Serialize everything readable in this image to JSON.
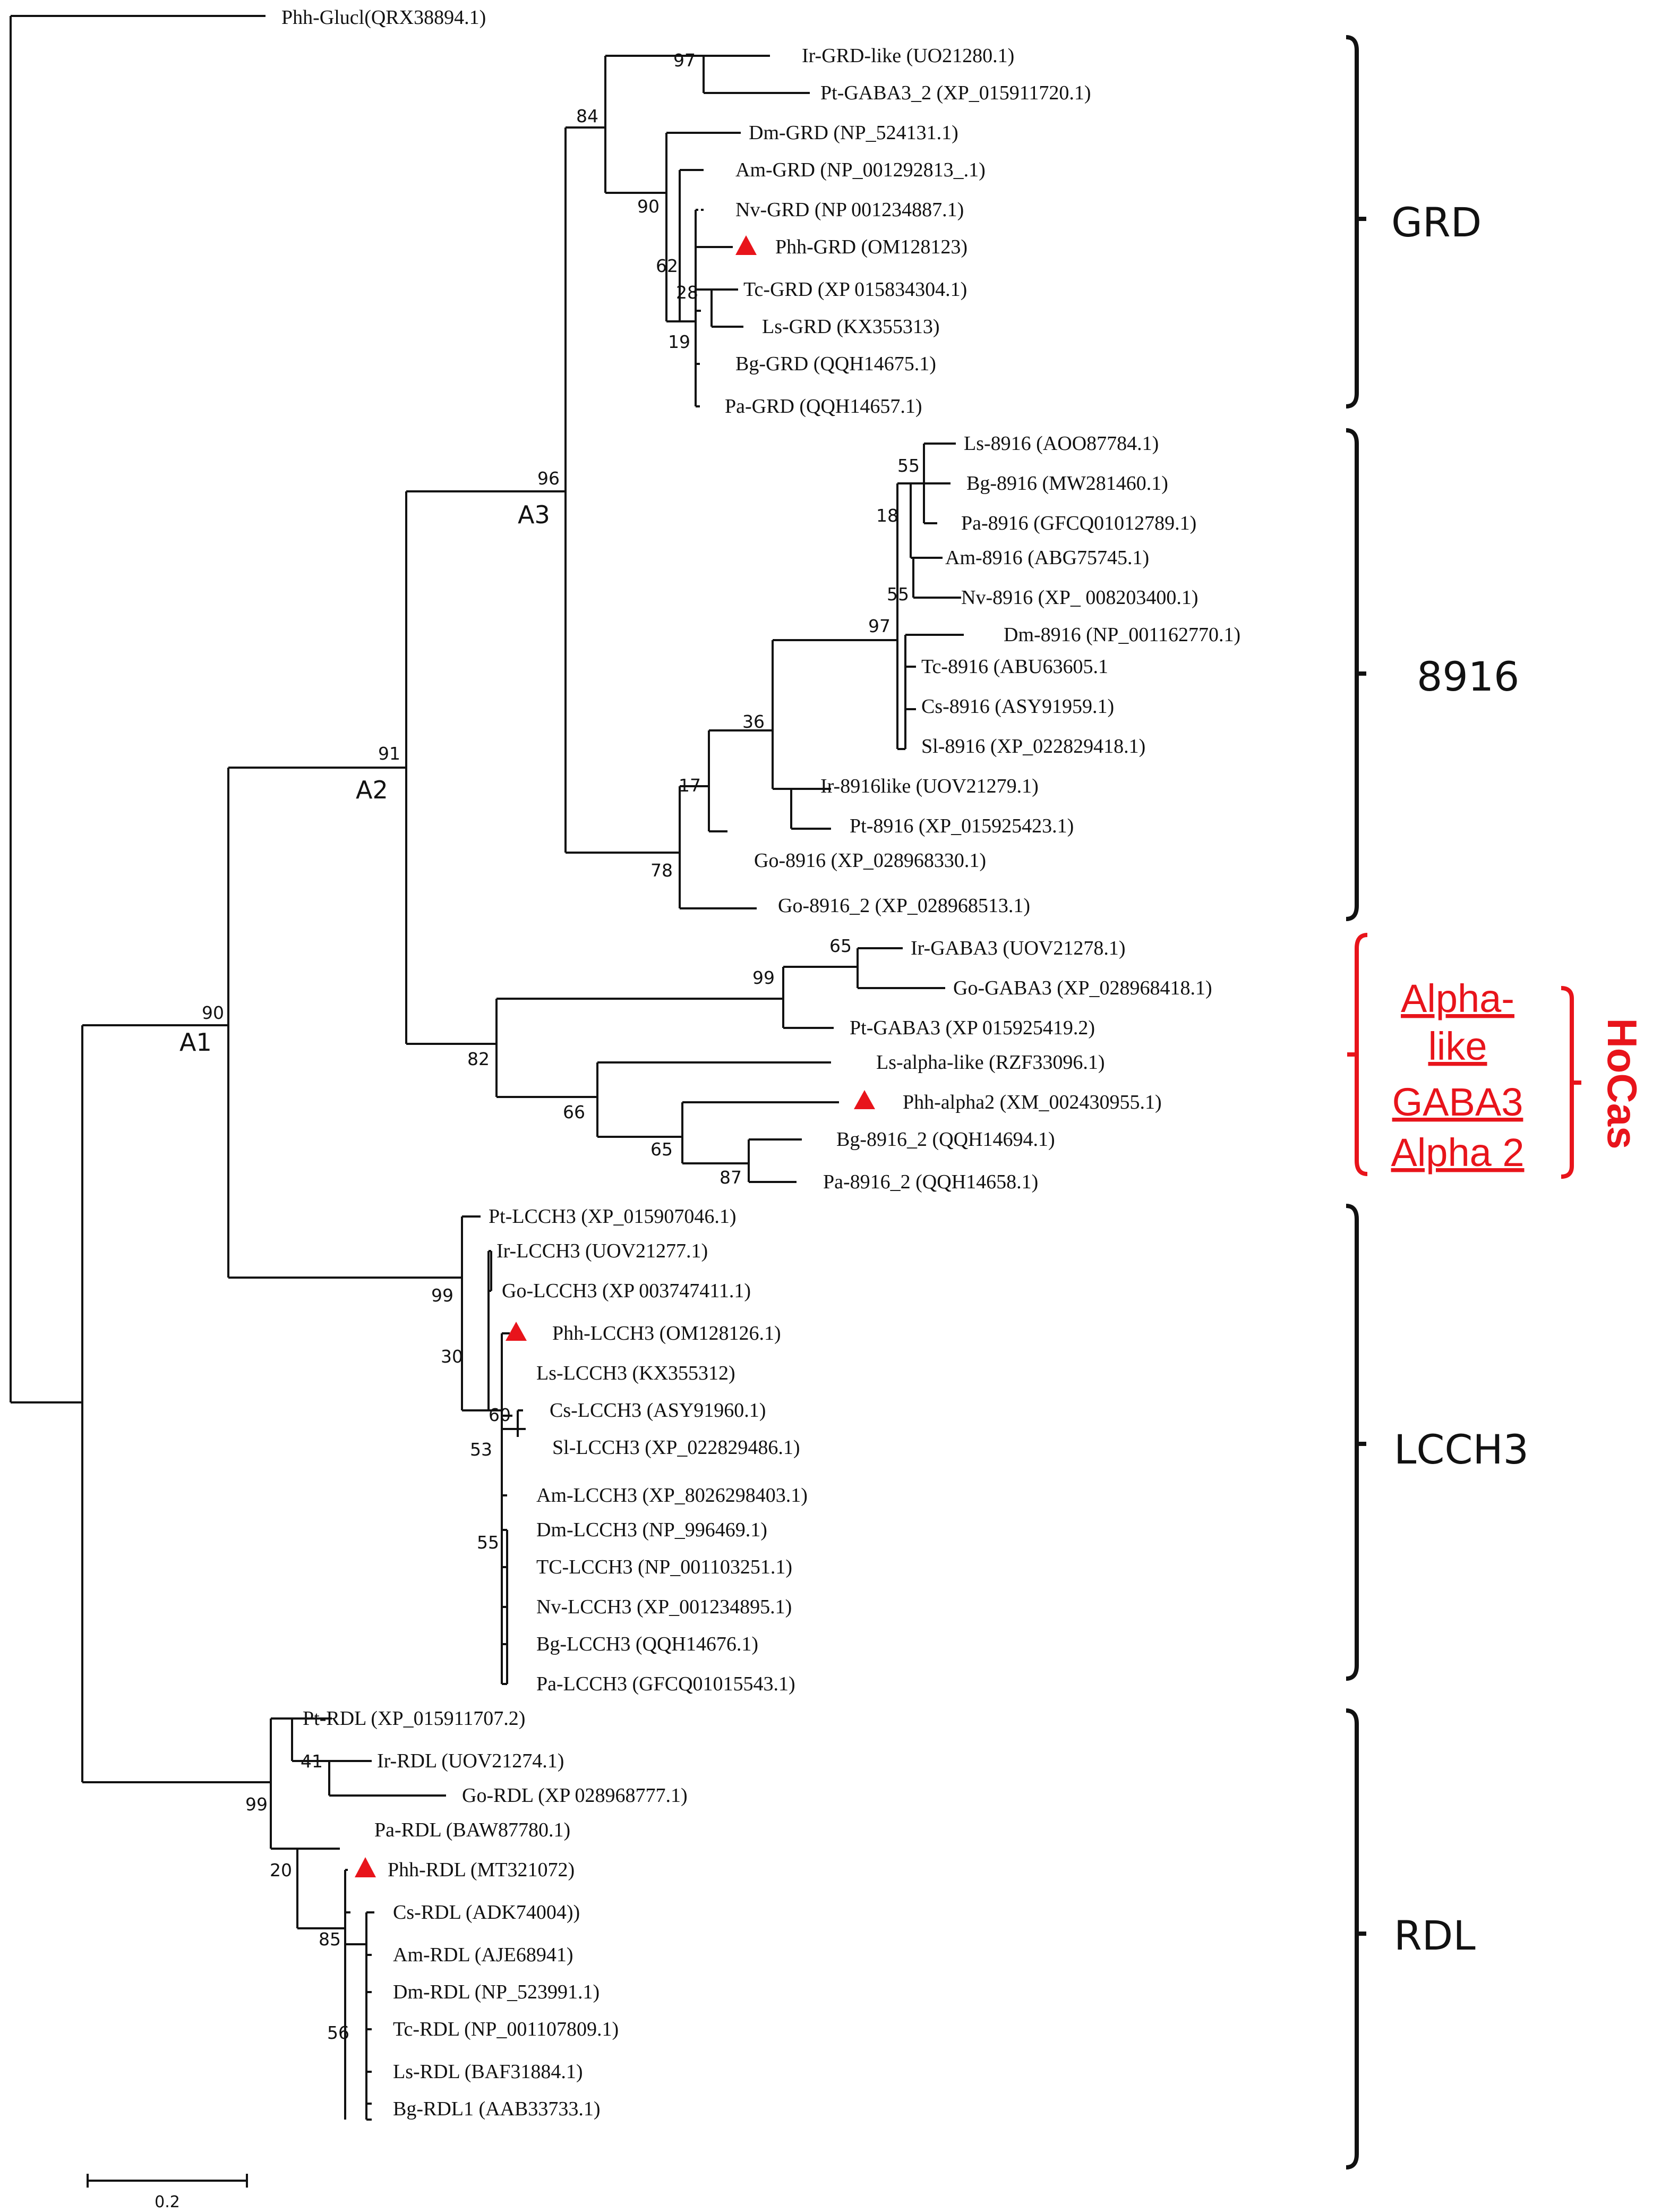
{
  "figure": {
    "outgroup": "Phh-Glucl(QRX38894.1)",
    "leaves": {
      "ir_grd_like": "Ir-GRD-like  (UO21280.1)",
      "pt_gaba3_2": "Pt-GABA3_2  (XP_015911720.1)",
      "dm_grd": "Dm-GRD  (NP_524131.1)",
      "am_grd": "Am-GRD  (NP_001292813_.1)",
      "nv_grd": "Nv-GRD  (NP  001234887.1)",
      "phh_grd": "Phh-GRD  (OM128123)",
      "tc_grd": "Tc-GRD  (XP  015834304.1)",
      "ls_grd": "Ls-GRD  (KX355313)",
      "bg_grd": "Bg-GRD  (QQH14675.1)",
      "pa_grd": "Pa-GRD  (QQH14657.1)",
      "ls_8916": "Ls-8916  (AOO87784.1)",
      "bg_8916": "Bg-8916  (MW281460.1)",
      "pa_8916": "Pa-8916  (GFCQ01012789.1)",
      "am_8916": "Am-8916  (ABG75745.1)",
      "nv_8916": "Nv-8916  (XP_  008203400.1)",
      "dm_8916": "Dm-8916  (NP_001162770.1)",
      "tc_8916": "Tc-8916  (ABU63605.1",
      "cs_8916": "Cs-8916  (ASY91959.1)",
      "sl_8916": "Sl-8916  (XP_022829418.1)",
      "ir_8916like": "Ir-8916like  (UOV21279.1)",
      "pt_8916": "Pt-8916  (XP_015925423.1)",
      "go_8916": "Go-8916  (XP_028968330.1)",
      "go_8916_2": "Go-8916_2  (XP_028968513.1)",
      "ir_gaba3": "Ir-GABA3  (UOV21278.1)",
      "go_gaba3": "Go-GABA3  (XP_028968418.1)",
      "pt_gaba3": "Pt-GABA3  (XP  015925419.2)",
      "ls_alpha_like": "Ls-alpha-like  (RZF33096.1)",
      "phh_alpha2": "Phh-alpha2  (XM_002430955.1)",
      "bg_8916_2": "Bg-8916_2  (QQH14694.1)",
      "pa_8916_2": "Pa-8916_2  (QQH14658.1)",
      "pt_lcch3": "Pt-LCCH3  (XP_015907046.1)",
      "ir_lcch3": "Ir-LCCH3  (UOV21277.1)",
      "go_lcch3": "Go-LCCH3  (XP  003747411.1)",
      "phh_lcch3": "Phh-LCCH3  (OM128126.1)",
      "ls_lcch3": "Ls-LCCH3  (KX355312)",
      "cs_lcch3": "Cs-LCCH3  (ASY91960.1)",
      "sl_lcch3": "Sl-LCCH3  (XP_022829486.1)",
      "am_lcch3": "Am-LCCH3  (XP_8026298403.1)",
      "dm_lcch3": "Dm-LCCH3  (NP_996469.1)",
      "tc_lcch3": "TC-LCCH3  (NP_001103251.1)",
      "nv_lcch3": "Nv-LCCH3  (XP_001234895.1)",
      "bg_lcch3": "Bg-LCCH3  (QQH14676.1)",
      "pa_lcch3": "Pa-LCCH3  (GFCQ01015543.1)",
      "pt_rdl": "Pt-RDL  (XP_015911707.2)",
      "ir_rdl": "Ir-RDL  (UOV21274.1)",
      "go_rdl": "Go-RDL  (XP  028968777.1)",
      "pa_rdl": "Pa-RDL  (BAW87780.1)",
      "phh_rdl": "Phh-RDL  (MT321072)",
      "cs_rdl": "Cs-RDL  (ADK74004))",
      "am_rdl": "Am-RDL  (AJE68941)",
      "dm_rdl": "Dm-RDL  (NP_523991.1)",
      "tc_rdl": "Tc-RDL  (NP_001107809.1)",
      "ls_rdl": "Ls-RDL  (BAF31884.1)",
      "bg_rdl1": "Bg-RDL1  (AAB33733.1)"
    },
    "bootstrap": {
      "b97_grd": "97",
      "b84": "84",
      "b90_grd": "90",
      "b62": "62",
      "b28": "28",
      "b19": "19",
      "b96": "96",
      "b55_a": "55",
      "b18": "18",
      "b55_b": "55",
      "b97_8916": "97",
      "b36": "36",
      "b17": "17",
      "b78": "78",
      "b91": "91",
      "b65_a": "65",
      "b99_gaba": "99",
      "b82": "82",
      "b66": "66",
      "b65_b": "65",
      "b87": "87",
      "b90_root": "90",
      "b99_lcch": "99",
      "b30": "30",
      "b60": "60",
      "b53": "53",
      "b55_c": "55",
      "b41": "41",
      "b99_rdl": "99",
      "b20": "20",
      "b85": "85",
      "b56": "56"
    },
    "node_labels": {
      "a1": "A1",
      "a2": "A2",
      "a3": "A3"
    },
    "clades": {
      "grd": "GRD",
      "c8916": "8916",
      "lcch3": "LCCH3",
      "rdl": "RDL"
    },
    "highlight": {
      "line1": "Alpha-",
      "line2": "like",
      "line3": "GABA3",
      "line4": "Alpha 2",
      "group": "HoCas"
    },
    "scale_bar": "0.2",
    "marker_color": "#e8141b",
    "marker_icon": "triangle-marker"
  }
}
